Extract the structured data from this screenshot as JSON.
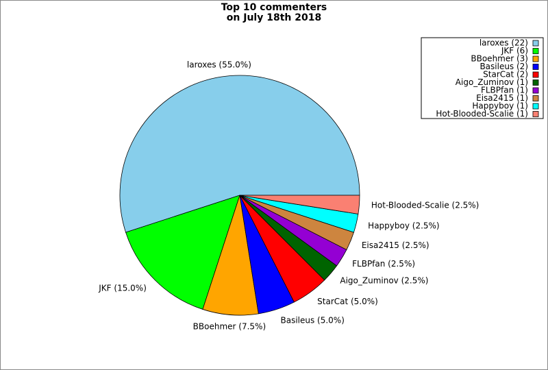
{
  "chart_data": {
    "type": "pie",
    "title": [
      "Top 10 commenters",
      "on July 18th 2018"
    ],
    "categories": [
      "laroxes",
      "JKF",
      "BBoehmer",
      "Basileus",
      "StarCat",
      "Aigo_Zuminov",
      "FLBPfan",
      "Eisa2415",
      "Happyboy",
      "Hot-Blooded-Scalie"
    ],
    "values": [
      55.0,
      15.0,
      7.5,
      5.0,
      5.0,
      2.5,
      2.5,
      2.5,
      2.5,
      2.5
    ],
    "value_labels": [
      "laroxes (55.0%)",
      "JKF (15.0%)",
      "BBoehmer (7.5%)",
      "Basileus (5.0%)",
      "StarCat (5.0%)",
      "Aigo_Zuminov (2.5%)",
      "FLBPfan (2.5%)",
      "Eisa2415 (2.5%)",
      "Happyboy (2.5%)",
      "Hot-Blooded-Scalie (2.5%)"
    ],
    "legend_labels": [
      "laroxes (22)",
      "JKF (6)",
      "BBoehmer (3)",
      "Basileus (2)",
      "StarCat (2)",
      "Aigo_Zuminov (1)",
      "FLBPfan (1)",
      "Eisa2415 (1)",
      "Happyboy (1)",
      "Hot-Blooded-Scalie (1)"
    ],
    "colors": [
      "#87ceeb",
      "#00ff00",
      "#ffa500",
      "#0000ff",
      "#ff0000",
      "#006400",
      "#9400d3",
      "#cd853f",
      "#00ffff",
      "#fa8072"
    ],
    "legend": "upper right"
  }
}
